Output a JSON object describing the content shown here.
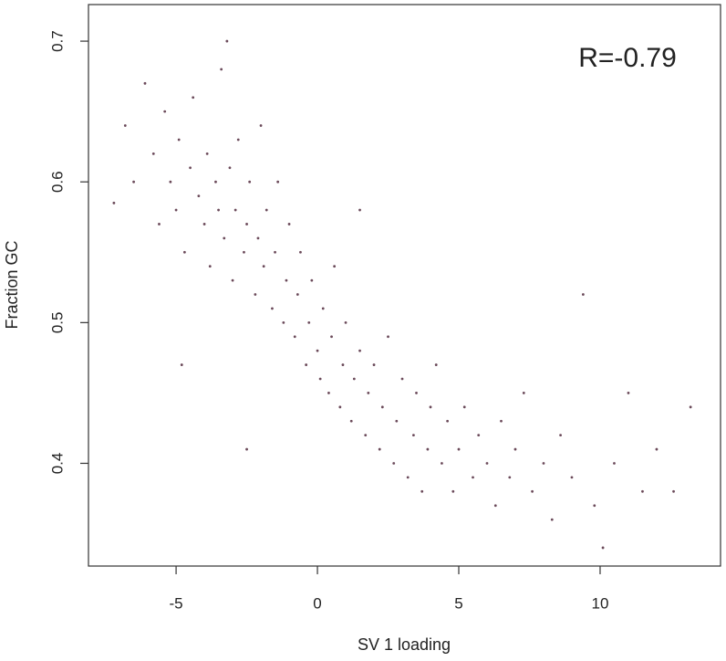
{
  "chart_data": {
    "type": "scatter",
    "annotation": "R=-0.79",
    "x_label": "SV 1 loading",
    "y_label": "Fraction GC",
    "color": "#6b4a5a",
    "xlim": [
      -8.1,
      14.26
    ],
    "ylim": [
      0.327,
      0.726
    ],
    "xticks": [
      -5,
      0,
      5,
      10
    ],
    "yticks": [
      0.4,
      0.5,
      0.6,
      0.7
    ],
    "x": [
      -7.2,
      -6.8,
      -6.5,
      -6.1,
      -5.8,
      -5.6,
      -5.4,
      -5.2,
      -5.0,
      -4.9,
      -4.7,
      -4.5,
      -4.4,
      -4.2,
      -4.0,
      -3.9,
      -3.8,
      -3.6,
      -3.5,
      -3.4,
      -3.3,
      -3.1,
      -3.0,
      -2.9,
      -2.8,
      -2.6,
      -2.5,
      -2.4,
      -2.2,
      -2.1,
      -2.0,
      -1.9,
      -1.8,
      -1.6,
      -1.5,
      -1.4,
      -1.2,
      -1.1,
      -1.0,
      -0.8,
      -0.7,
      -0.6,
      -0.4,
      -0.3,
      -0.2,
      0.0,
      0.1,
      0.2,
      0.4,
      0.5,
      0.6,
      0.8,
      0.9,
      1.0,
      1.2,
      1.3,
      1.5,
      1.7,
      1.8,
      2.0,
      2.2,
      2.3,
      2.5,
      2.7,
      2.8,
      3.0,
      3.2,
      3.4,
      3.5,
      3.7,
      3.9,
      4.0,
      4.2,
      4.4,
      4.6,
      4.8,
      5.0,
      5.2,
      5.5,
      5.7,
      6.0,
      6.3,
      6.5,
      6.8,
      7.0,
      7.3,
      7.6,
      8.0,
      8.3,
      8.6,
      9.0,
      9.4,
      9.8,
      10.1,
      10.5,
      11.0,
      11.5,
      12.0,
      12.6,
      13.2,
      -3.2,
      -2.5,
      1.5,
      -4.8
    ],
    "y": [
      0.585,
      0.64,
      0.6,
      0.67,
      0.62,
      0.57,
      0.65,
      0.6,
      0.58,
      0.63,
      0.55,
      0.61,
      0.66,
      0.59,
      0.57,
      0.62,
      0.54,
      0.6,
      0.58,
      0.68,
      0.56,
      0.61,
      0.53,
      0.58,
      0.63,
      0.55,
      0.57,
      0.6,
      0.52,
      0.56,
      0.64,
      0.54,
      0.58,
      0.51,
      0.55,
      0.6,
      0.5,
      0.53,
      0.57,
      0.49,
      0.52,
      0.55,
      0.47,
      0.5,
      0.53,
      0.48,
      0.46,
      0.51,
      0.45,
      0.49,
      0.54,
      0.44,
      0.47,
      0.5,
      0.43,
      0.46,
      0.48,
      0.42,
      0.45,
      0.47,
      0.41,
      0.44,
      0.49,
      0.4,
      0.43,
      0.46,
      0.39,
      0.42,
      0.45,
      0.38,
      0.41,
      0.44,
      0.47,
      0.4,
      0.43,
      0.38,
      0.41,
      0.44,
      0.39,
      0.42,
      0.4,
      0.37,
      0.43,
      0.39,
      0.41,
      0.45,
      0.38,
      0.4,
      0.36,
      0.42,
      0.39,
      0.52,
      0.37,
      0.34,
      0.4,
      0.45,
      0.38,
      0.41,
      0.38,
      0.44,
      0.7,
      0.41,
      0.58,
      0.47
    ]
  }
}
